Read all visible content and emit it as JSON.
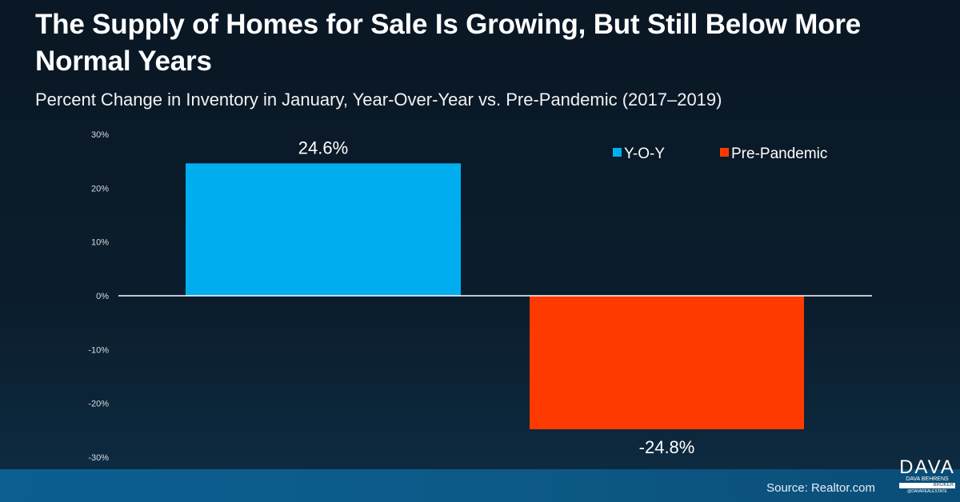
{
  "chart_data": {
    "type": "bar",
    "title": "The Supply of Homes for Sale Is Growing, But Still Below More Normal Years",
    "subtitle": "Percent Change in Inventory in January, Year-Over-Year vs. Pre-Pandemic (2017–2019)",
    "categories": [
      "Y-O-Y",
      "Pre-Pandemic"
    ],
    "values": [
      24.6,
      -24.8
    ],
    "data_labels": [
      "24.6%",
      "-24.8%"
    ],
    "colors": [
      "#00AEEF",
      "#FF3A00"
    ],
    "ylim": [
      -30,
      30
    ],
    "yticks": [
      30,
      20,
      10,
      0,
      -10,
      -20,
      -30
    ],
    "ytick_labels": [
      "30%",
      "20%",
      "10%",
      "0%",
      "-10%",
      "-20%",
      "-30%"
    ],
    "legend": {
      "position": "top-right",
      "entries": [
        "Y-O-Y",
        "Pre-Pandemic"
      ]
    },
    "grid": false,
    "source": "Source: Realtor.com"
  },
  "logo": {
    "name": "DAVA",
    "line2": "DAVA BEHRENS",
    "line3": "BROKER",
    "line4": "@DAVAREALESTATE"
  }
}
